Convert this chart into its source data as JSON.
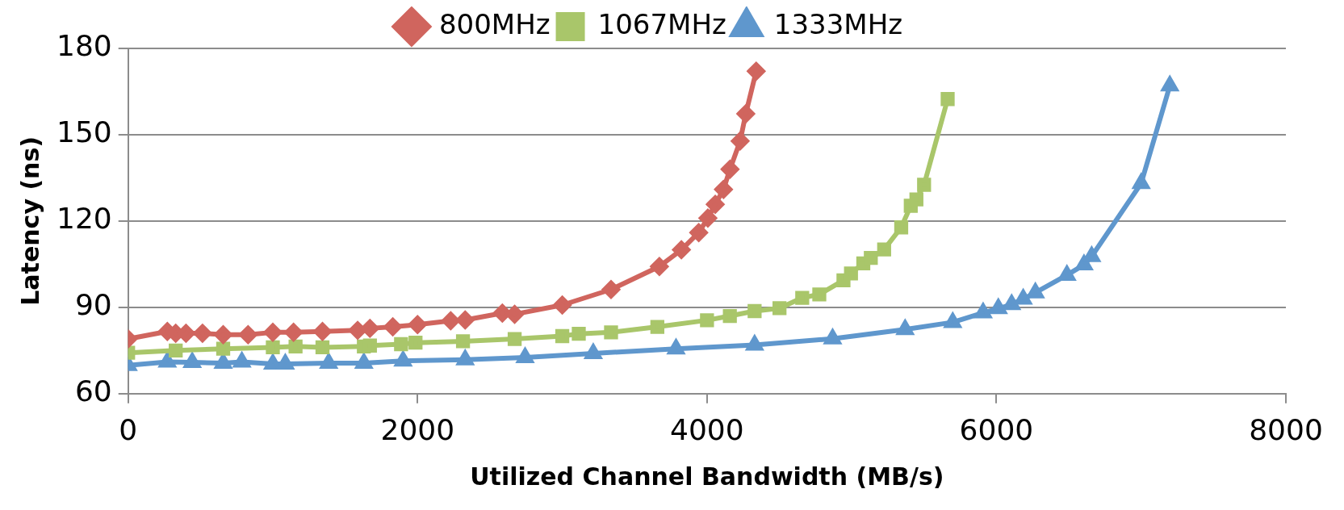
{
  "chart_data": {
    "type": "line",
    "xlabel": "Utilized Channel Bandwidth (MB/s)",
    "ylabel": "Latency (ns)",
    "xlim": [
      0,
      8000
    ],
    "xticks": [
      0,
      2000,
      4000,
      6000,
      8000
    ],
    "ylim": [
      60,
      180
    ],
    "yticks": [
      60,
      90,
      120,
      150,
      180
    ],
    "grid": "y",
    "legend": "top",
    "line_style": "solid",
    "series": [
      {
        "name": "800MHz",
        "color": "#d0655e",
        "marker": "diamond",
        "x": [
          0,
          271,
          329,
          400,
          514,
          657,
          829,
          1000,
          1143,
          1343,
          1586,
          1671,
          1829,
          2000,
          2229,
          2329,
          2586,
          2671,
          3000,
          3337,
          3671,
          3823,
          3943,
          4006,
          4057,
          4114,
          4159,
          4229,
          4268,
          4340
        ],
        "values": [
          79,
          81.6,
          81,
          81,
          81,
          80.5,
          80.5,
          81.3,
          81.3,
          81.6,
          82,
          82.7,
          83.2,
          84,
          85.3,
          85.6,
          88,
          87.6,
          90.8,
          96.2,
          104.2,
          110,
          116,
          121,
          125.8,
          131,
          138,
          147.8,
          157.3,
          172.1
        ]
      },
      {
        "name": "1067MHz",
        "color": "#a9c66a",
        "marker": "square",
        "x": [
          0,
          329,
          657,
          1000,
          1157,
          1343,
          1629,
          1671,
          1886,
          1986,
          2314,
          2671,
          3000,
          3114,
          3337,
          3657,
          4000,
          4158,
          4329,
          4501,
          4658,
          4776,
          4943,
          4995,
          5080,
          5132,
          5224,
          5342,
          5408,
          5447,
          5500,
          5663
        ],
        "values": [
          74.2,
          75,
          75.6,
          76.1,
          76.4,
          76.1,
          76.4,
          76.7,
          77.2,
          77.7,
          78.2,
          79,
          80,
          80.8,
          81.3,
          83.2,
          85.5,
          87,
          88.7,
          89.7,
          93.3,
          94.5,
          99.4,
          101.8,
          105.3,
          107.2,
          110.1,
          117.8,
          125.3,
          127.5,
          132.6,
          162.4
        ]
      },
      {
        "name": "1333MHz",
        "color": "#5f97cd",
        "marker": "triangle",
        "x": [
          0,
          271,
          443,
          657,
          786,
          1000,
          1086,
          1386,
          1629,
          1900,
          2329,
          2743,
          3214,
          3786,
          4329,
          4868,
          5369,
          5698,
          5908,
          6013,
          6105,
          6185,
          6269,
          6487,
          6605,
          6658,
          7000,
          7198
        ],
        "values": [
          69.8,
          71,
          70.9,
          70.6,
          71,
          70.3,
          70.3,
          70.6,
          70.6,
          71.4,
          71.8,
          72.6,
          74,
          75.6,
          76.9,
          79.1,
          82.3,
          84.8,
          88.1,
          89.6,
          91,
          92.9,
          95.1,
          101.2,
          104.8,
          107.7,
          133.1,
          167
        ]
      }
    ]
  }
}
